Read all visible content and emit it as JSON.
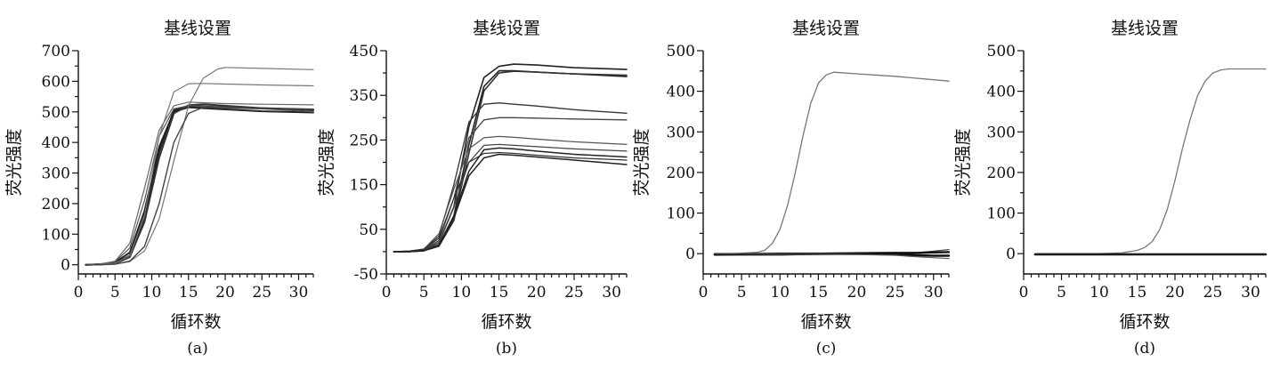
{
  "chart_data": [
    {
      "type": "line",
      "panel_label": "(a)",
      "title": "基线设置",
      "xlabel": "循环数",
      "ylabel": "荧光强度",
      "xlim": [
        0,
        32
      ],
      "ylim": [
        -30,
        700
      ],
      "x_ticks": [
        0,
        5,
        10,
        15,
        20,
        25,
        30
      ],
      "y_ticks": [
        0,
        100,
        200,
        300,
        400,
        500,
        600,
        700
      ],
      "grid": false,
      "legend": "none",
      "series": [
        {
          "x": [
            1,
            3,
            5,
            7,
            9,
            11,
            13,
            15,
            17,
            20,
            25,
            32
          ],
          "y": [
            0,
            1,
            5,
            30,
            155,
            370,
            505,
            520,
            518,
            515,
            512,
            505
          ],
          "color": "#222222",
          "width": 2
        },
        {
          "x": [
            1,
            3,
            5,
            7,
            9,
            11,
            13,
            15,
            17,
            20,
            25,
            32
          ],
          "y": [
            0,
            2,
            8,
            40,
            175,
            385,
            500,
            515,
            512,
            508,
            502,
            498
          ],
          "color": "#222222",
          "width": 2
        },
        {
          "x": [
            1,
            3,
            5,
            7,
            9,
            11,
            13,
            15,
            17,
            20,
            25,
            32
          ],
          "y": [
            0,
            1,
            4,
            25,
            140,
            350,
            495,
            522,
            525,
            520,
            512,
            508
          ],
          "color": "#333333",
          "width": 2
        },
        {
          "x": [
            1,
            3,
            5,
            7,
            9,
            11,
            13,
            15,
            17,
            20,
            25,
            32
          ],
          "y": [
            0,
            2,
            10,
            55,
            210,
            420,
            510,
            520,
            518,
            515,
            510,
            500
          ],
          "color": "#555555",
          "width": 1.2
        },
        {
          "x": [
            1,
            3,
            5,
            7,
            9,
            11,
            13,
            15,
            17,
            20,
            25,
            32
          ],
          "y": [
            0,
            2,
            12,
            70,
            250,
            440,
            520,
            532,
            530,
            527,
            525,
            523
          ],
          "color": "#666666",
          "width": 1.2
        },
        {
          "x": [
            1,
            3,
            5,
            7,
            9,
            11,
            13,
            15,
            17,
            20,
            25,
            32
          ],
          "y": [
            0,
            1,
            5,
            30,
            160,
            420,
            565,
            592,
            593,
            591,
            588,
            585
          ],
          "color": "#777777",
          "width": 1.2
        },
        {
          "x": [
            1,
            3,
            5,
            7,
            9,
            11,
            13,
            15,
            17,
            19,
            20,
            25,
            32
          ],
          "y": [
            0,
            0,
            2,
            10,
            45,
            150,
            340,
            520,
            610,
            640,
            645,
            642,
            638
          ],
          "color": "#777777",
          "width": 1.2
        },
        {
          "x": [
            1,
            3,
            5,
            7,
            9,
            11,
            13,
            15,
            17,
            20,
            25,
            32
          ],
          "y": [
            0,
            0,
            2,
            12,
            60,
            200,
            400,
            495,
            515,
            513,
            510,
            508
          ],
          "color": "#444444",
          "width": 1.4
        }
      ]
    },
    {
      "type": "line",
      "panel_label": "(b)",
      "title": "基线设置",
      "xlabel": "循环数",
      "ylabel": "荧光强度",
      "xlim": [
        0,
        32
      ],
      "ylim": [
        -50,
        450
      ],
      "x_ticks": [
        0,
        5,
        10,
        15,
        20,
        25,
        30
      ],
      "y_ticks": [
        -50,
        50,
        150,
        250,
        350,
        450
      ],
      "grid": false,
      "legend": "none",
      "series": [
        {
          "x": [
            1,
            3,
            5,
            7,
            9,
            11,
            13,
            15,
            17,
            20,
            25,
            32
          ],
          "y": [
            0,
            0,
            3,
            20,
            100,
            280,
            390,
            415,
            420,
            418,
            412,
            408
          ],
          "color": "#222222",
          "width": 1.6
        },
        {
          "x": [
            1,
            3,
            5,
            7,
            9,
            11,
            13,
            15,
            17,
            20,
            25,
            32
          ],
          "y": [
            0,
            0,
            2,
            15,
            80,
            240,
            370,
            405,
            405,
            402,
            398,
            392
          ],
          "color": "#222222",
          "width": 1.6
        },
        {
          "x": [
            1,
            3,
            5,
            7,
            9,
            11,
            13,
            15,
            17,
            20,
            25,
            32
          ],
          "y": [
            0,
            0,
            2,
            12,
            70,
            220,
            360,
            400,
            404,
            402,
            398,
            395
          ],
          "color": "#333333",
          "width": 1.6
        },
        {
          "x": [
            1,
            3,
            5,
            7,
            9,
            11,
            13,
            15,
            17,
            20,
            25,
            32
          ],
          "y": [
            0,
            1,
            5,
            35,
            150,
            290,
            330,
            333,
            330,
            326,
            318,
            310
          ],
          "color": "#333333",
          "width": 1.3
        },
        {
          "x": [
            1,
            3,
            5,
            7,
            9,
            11,
            13,
            15,
            17,
            20,
            25,
            32
          ],
          "y": [
            0,
            1,
            4,
            25,
            120,
            255,
            295,
            300,
            300,
            299,
            297,
            295
          ],
          "color": "#444444",
          "width": 1.3
        },
        {
          "x": [
            1,
            3,
            5,
            7,
            9,
            11,
            13,
            15,
            17,
            20,
            25,
            32
          ],
          "y": [
            0,
            1,
            6,
            40,
            140,
            230,
            255,
            258,
            256,
            252,
            246,
            240
          ],
          "color": "#555555",
          "width": 1.2
        },
        {
          "x": [
            1,
            3,
            5,
            7,
            9,
            11,
            13,
            15,
            17,
            20,
            25,
            32
          ],
          "y": [
            0,
            0,
            3,
            20,
            100,
            200,
            238,
            240,
            238,
            235,
            230,
            225
          ],
          "color": "#444444",
          "width": 1.3
        },
        {
          "x": [
            1,
            3,
            5,
            7,
            9,
            11,
            13,
            15,
            17,
            20,
            25,
            32
          ],
          "y": [
            0,
            1,
            5,
            30,
            120,
            200,
            220,
            222,
            220,
            216,
            210,
            205
          ],
          "color": "#333333",
          "width": 1.3
        },
        {
          "x": [
            1,
            3,
            5,
            7,
            9,
            11,
            13,
            15,
            17,
            20,
            25,
            32
          ],
          "y": [
            0,
            0,
            2,
            15,
            80,
            180,
            228,
            232,
            230,
            225,
            218,
            212
          ],
          "color": "#222222",
          "width": 1.5
        },
        {
          "x": [
            1,
            3,
            5,
            7,
            9,
            11,
            13,
            15,
            17,
            20,
            25,
            32
          ],
          "y": [
            0,
            0,
            2,
            14,
            75,
            170,
            210,
            218,
            216,
            212,
            205,
            195
          ],
          "color": "#222222",
          "width": 1.5
        }
      ]
    },
    {
      "type": "line",
      "panel_label": "(c)",
      "title": "基线设置",
      "xlabel": "循环数",
      "ylabel": "荧光强度",
      "xlim": [
        0,
        32
      ],
      "ylim": [
        -50,
        500
      ],
      "x_ticks": [
        0,
        5,
        10,
        15,
        20,
        25,
        30
      ],
      "y_ticks": [
        0,
        100,
        200,
        300,
        400,
        500
      ],
      "grid": false,
      "legend": "none",
      "series": [
        {
          "x": [
            1.5,
            4,
            7,
            8,
            9,
            10,
            11,
            12,
            13,
            14,
            15,
            16,
            17,
            20,
            25,
            32
          ],
          "y": [
            0,
            0,
            3,
            8,
            25,
            60,
            120,
            200,
            290,
            370,
            420,
            440,
            447,
            443,
            437,
            425
          ],
          "color": "#777777",
          "width": 1.3
        },
        {
          "x": [
            1.5,
            5,
            10,
            15,
            20,
            25,
            28,
            30,
            32
          ],
          "y": [
            -4,
            -3,
            -3,
            -2,
            -1,
            0,
            3,
            6,
            10
          ],
          "color": "#444444",
          "width": 1.2
        },
        {
          "x": [
            1.5,
            5,
            10,
            15,
            20,
            25,
            28,
            30,
            32
          ],
          "y": [
            -1,
            -1,
            0,
            0,
            1,
            2,
            2,
            3,
            4
          ],
          "color": "#111111",
          "width": 2.4
        },
        {
          "x": [
            1.5,
            5,
            10,
            15,
            20,
            25,
            28,
            30,
            32
          ],
          "y": [
            -2,
            -2,
            -2,
            -1,
            -1,
            -2,
            -4,
            -5,
            -5
          ],
          "color": "#111111",
          "width": 2.4
        },
        {
          "x": [
            1.5,
            5,
            10,
            15,
            20,
            25,
            28,
            30,
            32
          ],
          "y": [
            0,
            0,
            -1,
            -1,
            -2,
            -4,
            -8,
            -10,
            -12
          ],
          "color": "#555555",
          "width": 1.2
        }
      ]
    },
    {
      "type": "line",
      "panel_label": "(d)",
      "title": "基线设置",
      "xlabel": "循环数",
      "ylabel": "荧光强度",
      "xlim": [
        0,
        32
      ],
      "ylim": [
        -50,
        500
      ],
      "x_ticks": [
        0,
        5,
        10,
        15,
        20,
        25,
        30
      ],
      "y_ticks": [
        0,
        100,
        200,
        300,
        400,
        500
      ],
      "grid": false,
      "legend": "none",
      "series": [
        {
          "x": [
            1.5,
            10,
            13,
            15,
            16,
            17,
            18,
            19,
            20,
            21,
            22,
            23,
            24,
            25,
            26,
            27,
            28,
            32
          ],
          "y": [
            0,
            0,
            2,
            8,
            15,
            30,
            60,
            110,
            180,
            260,
            330,
            390,
            425,
            445,
            452,
            455,
            455,
            455
          ],
          "color": "#777777",
          "width": 1.3
        },
        {
          "x": [
            1.5,
            5,
            10,
            15,
            20,
            25,
            32
          ],
          "y": [
            -2,
            -2,
            -2,
            -2,
            -2,
            -2,
            -2
          ],
          "color": "#111111",
          "width": 2.4
        },
        {
          "x": [
            1.5,
            5,
            10,
            15,
            20,
            25,
            32
          ],
          "y": [
            -1,
            -1,
            -1,
            -1,
            -1,
            -1,
            -1
          ],
          "color": "#222222",
          "width": 1.6
        }
      ]
    }
  ]
}
